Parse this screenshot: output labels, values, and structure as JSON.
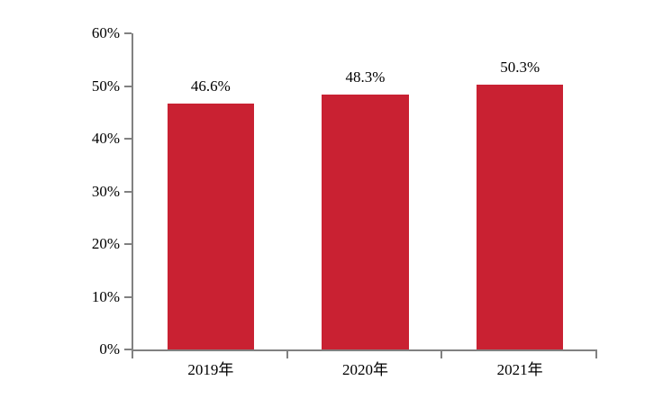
{
  "chart_data": {
    "type": "bar",
    "categories": [
      "2019年",
      "2020年",
      "2021年"
    ],
    "values": [
      46.6,
      48.3,
      50.3
    ],
    "data_labels": [
      "46.6%",
      "48.3%",
      "50.3%"
    ],
    "yticks": [
      {
        "value": 0,
        "label": "0%"
      },
      {
        "value": 10,
        "label": "10%"
      },
      {
        "value": 20,
        "label": "20%"
      },
      {
        "value": 30,
        "label": "30%"
      },
      {
        "value": 40,
        "label": "40%"
      },
      {
        "value": 50,
        "label": "50%"
      },
      {
        "value": 60,
        "label": "60%"
      }
    ],
    "ylim": [
      0,
      60
    ],
    "grid": false,
    "legend": false,
    "colors": {
      "bar": "#C92132",
      "axis": "#818181",
      "text": "#000000",
      "background": "#FFFFFF"
    }
  }
}
